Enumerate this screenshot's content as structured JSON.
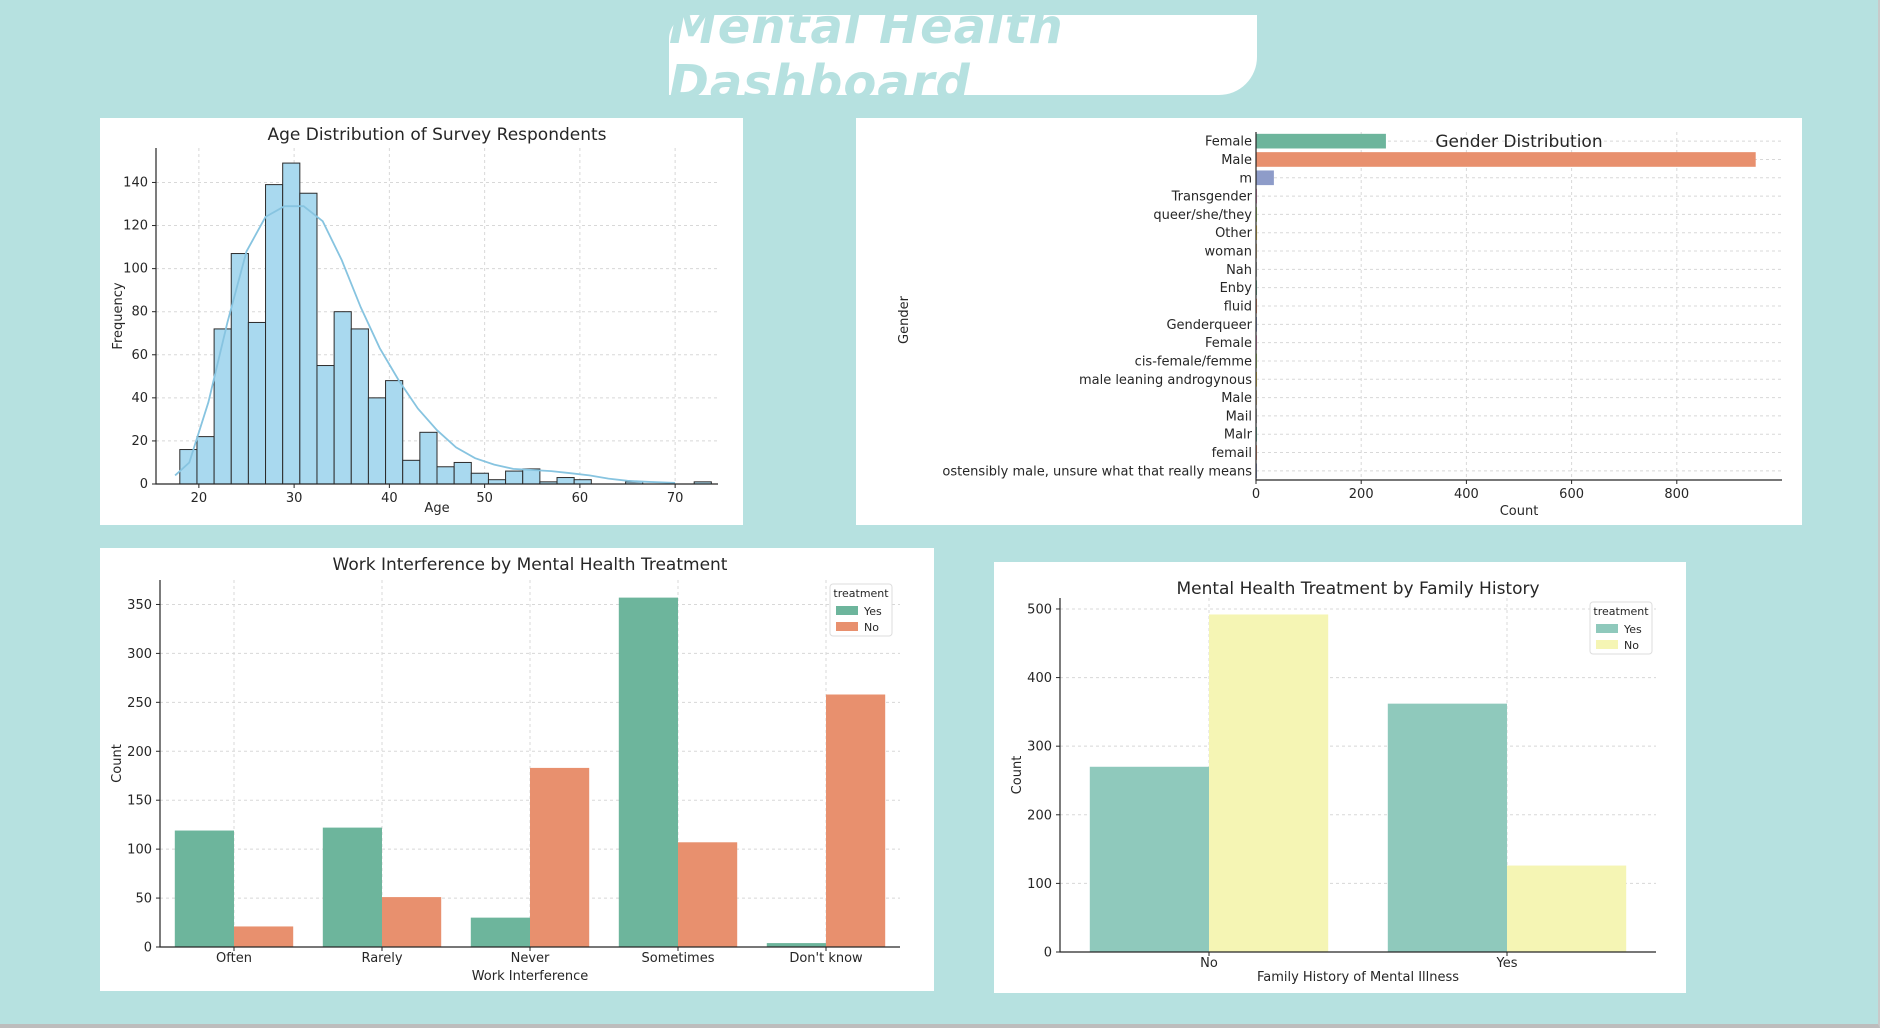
{
  "dashboard": {
    "title": "Mental Health Dashboard"
  },
  "colors": {
    "background": "#b6e1e0",
    "hist": "#a9d9ef",
    "kde": "#87c4e0",
    "yes_green": "#6db59c",
    "no_orange": "#e8906e",
    "yes_teal": "#8fc9bc",
    "no_yellow": "#f5f5b4",
    "gender": [
      "#6db59c",
      "#e8906e",
      "#8e9cc9",
      "#e48fc0",
      "#a9d26a",
      "#f5cf48",
      "#d9bb8d",
      "#b3b3b3"
    ]
  },
  "charts": [
    {
      "type": "bar",
      "subtype": "histogram",
      "title": "Age Distribution of Survey Respondents",
      "xlabel": "Age",
      "ylabel": "Frequency",
      "xlim": [
        15.5,
        74.5
      ],
      "ylim": [
        0,
        156
      ],
      "xticks": [
        20,
        30,
        40,
        50,
        60,
        70
      ],
      "yticks": [
        0,
        20,
        40,
        60,
        80,
        100,
        120,
        140
      ],
      "bin_start": 18,
      "bin_width": 1.8,
      "values": [
        16,
        22,
        72,
        107,
        75,
        139,
        149,
        135,
        55,
        80,
        72,
        40,
        48,
        11,
        24,
        8,
        10,
        5,
        2,
        6,
        7,
        1,
        3,
        2,
        0,
        0,
        1,
        0,
        0,
        0,
        1
      ],
      "kde": [
        [
          17.5,
          4
        ],
        [
          19,
          10
        ],
        [
          21,
          38
        ],
        [
          23,
          75
        ],
        [
          25,
          108
        ],
        [
          27,
          124
        ],
        [
          29,
          129
        ],
        [
          31,
          129
        ],
        [
          33,
          122
        ],
        [
          35,
          104
        ],
        [
          37,
          82
        ],
        [
          39,
          63
        ],
        [
          41,
          48
        ],
        [
          43,
          35
        ],
        [
          45,
          25
        ],
        [
          47,
          17
        ],
        [
          49,
          12
        ],
        [
          51,
          9
        ],
        [
          53,
          7
        ],
        [
          55,
          6.5
        ],
        [
          57,
          6
        ],
        [
          59,
          5
        ],
        [
          61,
          4
        ],
        [
          63,
          2.5
        ],
        [
          65,
          1.5
        ],
        [
          67,
          1
        ],
        [
          70,
          0.5
        ]
      ]
    },
    {
      "type": "bar",
      "subtype": "horizontal",
      "title": "Gender Distribution",
      "xlabel": "Count",
      "ylabel": "Gender",
      "xlim": [
        0,
        1000
      ],
      "xticks": [
        0,
        200,
        400,
        600,
        800
      ],
      "categories": [
        "Female",
        "Male",
        "m",
        "Transgender",
        "queer/she/they",
        "Other",
        "woman",
        "Nah",
        "Enby",
        "fluid",
        "Genderqueer",
        "Female ",
        "cis-female/femme",
        "male leaning androgynous",
        "Male ",
        "Mail",
        "Malr",
        "femail",
        "ostensibly male, unsure what that really means"
      ],
      "values": [
        247,
        950,
        34,
        1,
        1,
        2,
        1,
        1,
        1,
        1,
        1,
        1,
        1,
        1,
        1,
        1,
        1,
        1,
        1
      ]
    },
    {
      "type": "bar",
      "subtype": "grouped",
      "title": "Work Interference by Mental Health Treatment",
      "xlabel": "Work Interference",
      "ylabel": "Count",
      "ylim": [
        0,
        375
      ],
      "yticks": [
        0,
        50,
        100,
        150,
        200,
        250,
        300,
        350
      ],
      "categories": [
        "Often",
        "Rarely",
        "Never",
        "Sometimes",
        "Don't know"
      ],
      "legend": {
        "title": "treatment",
        "position": "top-right"
      },
      "series": [
        {
          "name": "Yes",
          "values": [
            119,
            122,
            30,
            357,
            4
          ]
        },
        {
          "name": "No",
          "values": [
            21,
            51,
            183,
            107,
            258
          ]
        }
      ]
    },
    {
      "type": "bar",
      "subtype": "grouped",
      "title": "Mental Health Treatment by Family History",
      "xlabel": "Family History of Mental Illness",
      "ylabel": "Count",
      "ylim": [
        0,
        516
      ],
      "yticks": [
        0,
        100,
        200,
        300,
        400,
        500
      ],
      "categories": [
        "No",
        "Yes"
      ],
      "legend": {
        "title": "treatment",
        "position": "top-right"
      },
      "series": [
        {
          "name": "Yes",
          "values": [
            270,
            362
          ]
        },
        {
          "name": "No",
          "values": [
            492,
            126
          ]
        }
      ]
    }
  ]
}
